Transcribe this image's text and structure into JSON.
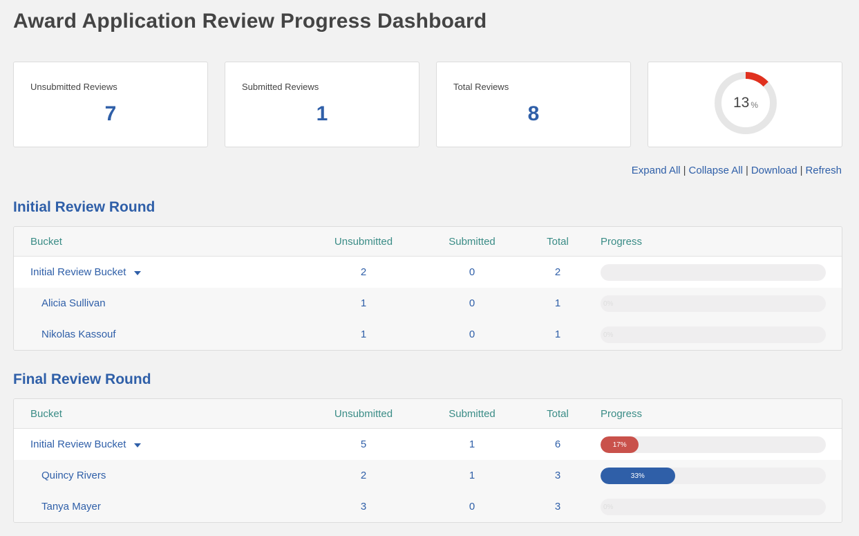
{
  "page": {
    "title": "Award Application Review Progress Dashboard"
  },
  "summary": {
    "unsubmitted": {
      "label": "Unsubmitted Reviews",
      "value": "7"
    },
    "submitted": {
      "label": "Submitted Reviews",
      "value": "1"
    },
    "total": {
      "label": "Total Reviews",
      "value": "8"
    },
    "completion": {
      "value": "13",
      "unit": "%",
      "fraction": 0.13,
      "color": "#e0301e",
      "track_color": "#e6e6e6"
    }
  },
  "actions": {
    "expand_all": "Expand All",
    "collapse_all": "Collapse All",
    "download": "Download",
    "refresh": "Refresh",
    "separator": "|"
  },
  "columns": {
    "bucket": "Bucket",
    "unsubmitted": "Unsubmitted",
    "submitted": "Submitted",
    "total": "Total",
    "progress": "Progress"
  },
  "rounds": [
    {
      "title": "Initial Review Round",
      "bucket": {
        "name": "Initial Review Bucket",
        "unsubmitted": "2",
        "submitted": "0",
        "total": "2",
        "progress": 0,
        "progress_label": ""
      },
      "reviewers": [
        {
          "name": "Alicia Sullivan",
          "unsubmitted": "1",
          "submitted": "0",
          "total": "1",
          "progress": 0,
          "progress_label": "0%"
        },
        {
          "name": "Nikolas Kassouf",
          "unsubmitted": "1",
          "submitted": "0",
          "total": "1",
          "progress": 0,
          "progress_label": "0%"
        }
      ]
    },
    {
      "title": "Final Review Round",
      "bucket": {
        "name": "Initial Review Bucket",
        "unsubmitted": "5",
        "submitted": "1",
        "total": "6",
        "progress": 17,
        "progress_label": "17%",
        "color": "#c9514b"
      },
      "reviewers": [
        {
          "name": "Quincy Rivers",
          "unsubmitted": "2",
          "submitted": "1",
          "total": "3",
          "progress": 33,
          "progress_label": "33%",
          "color": "#2f5fa8"
        },
        {
          "name": "Tanya Mayer",
          "unsubmitted": "3",
          "submitted": "0",
          "total": "3",
          "progress": 0,
          "progress_label": "0%"
        }
      ]
    }
  ]
}
